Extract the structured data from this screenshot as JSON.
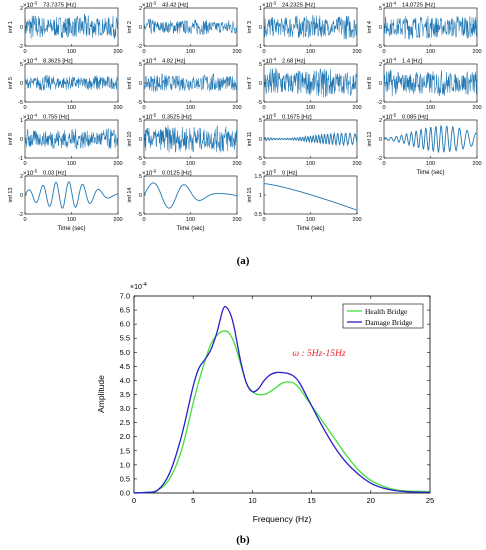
{
  "figure": {
    "label_a": "(a)",
    "label_b": "(b)"
  },
  "imf_grid": {
    "xlabel": "Time (sec)",
    "panels": [
      {
        "ylabel": "imf 1",
        "freq": "73.7375 [Hz]",
        "exp": "-3",
        "xticks": [
          "0",
          "100",
          "200"
        ],
        "yticks": [
          "2",
          "0",
          "-2"
        ],
        "ylim": [
          -2,
          2
        ],
        "amplitude": 1.4,
        "cycles": 0
      },
      {
        "ylabel": "imf 2",
        "freq": "43.42 [Hz]",
        "exp": "-3",
        "xticks": [
          "0",
          "100",
          "200"
        ],
        "yticks": [
          "2",
          "0",
          "-2"
        ],
        "ylim": [
          -2,
          2
        ],
        "amplitude": 0.9,
        "cycles": 0
      },
      {
        "ylabel": "imf 3",
        "freq": "24.2325 [Hz]",
        "exp": "-3",
        "xticks": [
          "0",
          "100",
          "200"
        ],
        "yticks": [
          "1",
          "0",
          "-1"
        ],
        "ylim": [
          -1,
          1
        ],
        "amplitude": 0.7,
        "cycles": 0
      },
      {
        "ylabel": "imf 4",
        "freq": "14.0725 [Hz]",
        "exp": "-4",
        "xticks": [
          "0",
          "100",
          "200"
        ],
        "yticks": [
          "5",
          "0",
          "-5"
        ],
        "ylim": [
          -5,
          5
        ],
        "amplitude": 3.5,
        "cycles": 0
      },
      {
        "ylabel": "imf 5",
        "freq": "8.3625 [Hz]",
        "exp": "-4",
        "xticks": [
          "0",
          "100",
          "200"
        ],
        "yticks": [
          "5",
          "0",
          "-5"
        ],
        "ylim": [
          -5,
          5
        ],
        "amplitude": 2.2,
        "cycles": 0
      },
      {
        "ylabel": "imf 6",
        "freq": "4.82 [Hz]",
        "exp": "-4",
        "xticks": [
          "0",
          "100",
          "200"
        ],
        "yticks": [
          "5",
          "0",
          "-5"
        ],
        "ylim": [
          -5,
          5
        ],
        "amplitude": 2.6,
        "cycles": 0
      },
      {
        "ylabel": "imf 7",
        "freq": "2.68 [Hz]",
        "exp": "-4",
        "xticks": [
          "0",
          "100",
          "200"
        ],
        "yticks": [
          "5",
          "0",
          "-5"
        ],
        "ylim": [
          -5,
          5
        ],
        "amplitude": 4.2,
        "cycles": 0
      },
      {
        "ylabel": "imf 8",
        "freq": "1.4 [Hz]",
        "exp": "-4",
        "xticks": [
          "0",
          "100",
          "200"
        ],
        "yticks": [
          "2",
          "0",
          "-2"
        ],
        "ylim": [
          -2,
          2
        ],
        "amplitude": 1.5,
        "cycles": 0
      },
      {
        "ylabel": "imf 9",
        "freq": "0.755 [Hz]",
        "exp": "-4",
        "xticks": [
          "0",
          "100",
          "200"
        ],
        "yticks": [
          "1",
          "0",
          "-1"
        ],
        "ylim": [
          -1,
          1
        ],
        "amplitude": 0.6,
        "cycles": 0
      },
      {
        "ylabel": "imf 10",
        "freq": "0.3525 [Hz]",
        "exp": "-5",
        "xticks": [
          "0",
          "100",
          "200"
        ],
        "yticks": [
          "5",
          "0",
          "-5"
        ],
        "ylim": [
          -5,
          5
        ],
        "amplitude": 4.0,
        "cycles": 0
      },
      {
        "ylabel": "imf 11",
        "freq": "0.1675 [Hz]",
        "exp": "-5",
        "xticks": [
          "0",
          "100",
          "200"
        ],
        "yticks": [
          "5",
          "0",
          "-5"
        ],
        "ylim": [
          -5,
          5
        ],
        "amplitude": 1.6,
        "cycles": 30
      },
      {
        "ylabel": "imf 12",
        "freq": "0.085 [Hz]",
        "exp": "-5",
        "xticks": [
          "0",
          "100",
          "200"
        ],
        "yticks": [
          "2",
          "0",
          "-2"
        ],
        "ylim": [
          -2,
          2
        ],
        "amplitude": 1.4,
        "cycles": 16
      },
      {
        "ylabel": "imf 13",
        "freq": "0.03 [Hz]",
        "exp": "-5",
        "xticks": [
          "0",
          "100",
          "200"
        ],
        "yticks": [
          "2",
          "0",
          "-2"
        ],
        "ylim": [
          -2,
          2
        ],
        "amplitude": 1.4,
        "cycles": 6
      },
      {
        "ylabel": "imf 14",
        "freq": "0.0125 [Hz]",
        "exp": "-6",
        "xticks": [
          "0",
          "100",
          "200"
        ],
        "yticks": [
          "5",
          "0",
          "-5"
        ],
        "ylim": [
          -5,
          5
        ],
        "amplitude": 3.5,
        "cycles": 2.5
      },
      {
        "ylabel": "imf 15",
        "freq": "0 [Hz]",
        "exp": "-5",
        "xticks": [
          "0",
          "100",
          "200"
        ],
        "yticks": [
          "1.5",
          "1",
          "0.5"
        ],
        "ylim": [
          0.5,
          1.5
        ],
        "amplitude": 0,
        "cycles": -1
      }
    ],
    "xlabel_panels": [
      11,
      12,
      13,
      14
    ],
    "series_color": "#1f77b4"
  },
  "chart_data": {
    "type": "line",
    "title": "",
    "xlabel": "Frequency (Hz)",
    "ylabel": "Amplitude",
    "y_exponent": "×10",
    "y_exponent_power": "-4",
    "xlim": [
      0,
      25
    ],
    "ylim": [
      0,
      7.0
    ],
    "xticks": [
      "0",
      "5",
      "10",
      "15",
      "20",
      "25"
    ],
    "yticks": [
      "0.0",
      "0.5",
      "1.0",
      "1.5",
      "2.0",
      "2.5",
      "3.0",
      "3.5",
      "4.0",
      "4.5",
      "5.0",
      "5.5",
      "6.0",
      "6.5",
      "7.0"
    ],
    "annotation": "ω : 5Hz-15Hz",
    "annotation_color": "#e8212b",
    "legend_position": "top-right",
    "series": [
      {
        "name": "Health Bridge",
        "color": "#3fe03f",
        "x": [
          0,
          1,
          2,
          3,
          4,
          5,
          5.5,
          6,
          6.5,
          7,
          7.5,
          8,
          8.5,
          9,
          9.5,
          10,
          10.5,
          11,
          11.5,
          12,
          12.5,
          13,
          13.5,
          14,
          15,
          16,
          17,
          18,
          19,
          20,
          21,
          22,
          23,
          24,
          25
        ],
        "values": [
          0,
          0.02,
          0.1,
          0.5,
          1.5,
          3.2,
          4.0,
          4.7,
          5.3,
          5.6,
          5.75,
          5.7,
          5.3,
          4.6,
          3.9,
          3.6,
          3.5,
          3.5,
          3.6,
          3.75,
          3.9,
          3.95,
          3.9,
          3.7,
          3.1,
          2.5,
          1.9,
          1.3,
          0.8,
          0.45,
          0.25,
          0.12,
          0.07,
          0.06,
          0.05
        ]
      },
      {
        "name": "Damage Bridge",
        "color": "#2a1fc9",
        "x": [
          0,
          1,
          2,
          3,
          4,
          5,
          5.5,
          6,
          6.5,
          7,
          7.5,
          7.8,
          8.2,
          8.5,
          9,
          9.5,
          10,
          10.5,
          11,
          11.5,
          12,
          12.5,
          13,
          13.5,
          14,
          15,
          16,
          17,
          18,
          19,
          20,
          21,
          22,
          23,
          24,
          25
        ],
        "values": [
          0,
          0.02,
          0.1,
          0.7,
          2.0,
          3.8,
          4.45,
          4.75,
          5.1,
          5.7,
          6.5,
          6.6,
          6.3,
          5.8,
          4.7,
          3.9,
          3.6,
          3.7,
          4.0,
          4.2,
          4.28,
          4.28,
          4.25,
          4.15,
          3.9,
          3.1,
          2.3,
          1.6,
          1.05,
          0.65,
          0.35,
          0.18,
          0.09,
          0.05,
          0.03,
          0.02
        ]
      }
    ]
  }
}
